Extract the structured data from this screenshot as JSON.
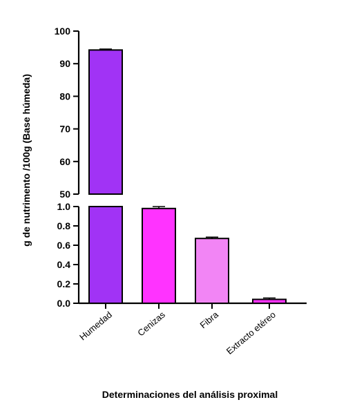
{
  "chart_data": {
    "type": "bar",
    "title": "",
    "xlabel": "Determinaciones del análisis proximal",
    "ylabel": "g de nutrimento /100g (Base húmeda)",
    "categories": [
      "Humedad",
      "Cenizas",
      "Fibra",
      "Extracto etéreo"
    ],
    "values": [
      94.2,
      0.98,
      0.67,
      0.04
    ],
    "errors": [
      0.3,
      0.02,
      0.01,
      0.005
    ],
    "colors": [
      "#a133f5",
      "#ff33ff",
      "#f285f5",
      "#ff33ff"
    ],
    "y_axis_broken": true,
    "lower_segment": {
      "ylim": [
        0,
        1.0
      ],
      "ticks": [
        "0.0",
        "0.2",
        "0.4",
        "0.6",
        "0.8",
        "1.0"
      ]
    },
    "upper_segment": {
      "ylim": [
        50,
        100
      ],
      "ticks": [
        "50",
        "60",
        "70",
        "80",
        "90",
        "100"
      ]
    },
    "grid": false,
    "legend": "none"
  }
}
